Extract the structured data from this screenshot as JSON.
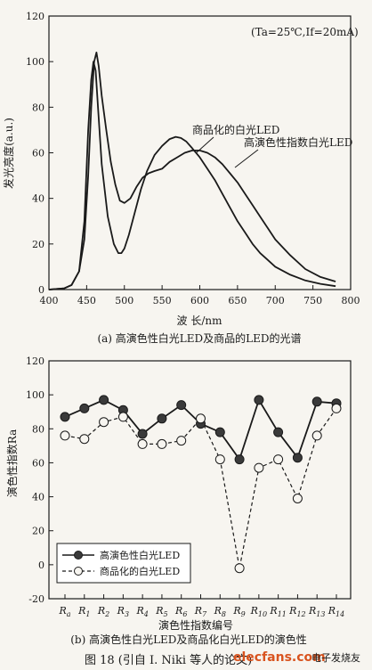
{
  "chart_data": [
    {
      "type": "line",
      "ylabel": "发光亮度(a.u.)",
      "xlabel": "波 长/nm",
      "caption": "(a) 高演色性白光LED及商品的LED的光谱",
      "conditions": "(Ta=25℃,If=20mA)",
      "xlim": [
        400,
        800
      ],
      "ylim": [
        0,
        120
      ],
      "x_ticks": [
        "400",
        "450",
        "500",
        "550",
        "600",
        "650",
        "700",
        "750",
        "800"
      ],
      "y_ticks": [
        "0",
        "20",
        "40",
        "60",
        "80",
        "100",
        "120"
      ],
      "series": [
        {
          "name": "商品化的白光LED",
          "x": [
            400,
            420,
            430,
            440,
            447,
            452,
            456,
            459,
            462,
            465,
            470,
            478,
            486,
            492,
            496,
            500,
            506,
            514,
            522,
            530,
            540,
            550,
            560,
            568,
            575,
            582,
            590,
            600,
            610,
            620,
            630,
            640,
            650,
            660,
            670,
            680,
            690,
            700,
            720,
            740,
            760,
            780
          ],
          "y": [
            0,
            0.5,
            2,
            8,
            30,
            70,
            92,
            100,
            96,
            80,
            55,
            32,
            20,
            16,
            16,
            18,
            24,
            34,
            44,
            52,
            59,
            63,
            66,
            67,
            66.5,
            65,
            62,
            58,
            53,
            48,
            42,
            36,
            30,
            25,
            20,
            16,
            13,
            10,
            6.5,
            4,
            2.5,
            1.5
          ]
        },
        {
          "name": "高演色性指数白光LED",
          "x": [
            400,
            420,
            430,
            440,
            447,
            452,
            456,
            460,
            463,
            466,
            470,
            476,
            482,
            488,
            494,
            500,
            508,
            516,
            524,
            532,
            540,
            550,
            560,
            570,
            580,
            590,
            600,
            610,
            620,
            630,
            640,
            650,
            660,
            670,
            680,
            690,
            700,
            720,
            740,
            760,
            780
          ],
          "y": [
            0,
            0.5,
            2,
            8,
            22,
            50,
            80,
            100,
            104,
            98,
            85,
            70,
            56,
            46,
            39,
            38,
            40,
            45,
            49,
            51,
            52,
            53,
            56,
            58,
            60,
            61,
            61,
            60,
            58,
            55,
            51,
            47,
            42,
            37,
            32,
            27,
            22,
            15,
            9,
            5.5,
            3.5
          ]
        }
      ],
      "annotations": [
        "商品化的白光LED",
        "高演色性指数白光LED"
      ]
    },
    {
      "type": "line",
      "ylabel": "演色性指数Ra",
      "xlabel": "演色性指数编号",
      "caption": "(b) 高演色性白光LED及商品化白光LED的演色性",
      "ylim": [
        -20,
        120
      ],
      "y_ticks": [
        "-20",
        "0",
        "20",
        "40",
        "60",
        "80",
        "100",
        "120"
      ],
      "categories": [
        "Ra",
        "R1",
        "R2",
        "R3",
        "R4",
        "R5",
        "R6",
        "R7",
        "R8",
        "R9",
        "R10",
        "R11",
        "R12",
        "R13",
        "R14"
      ],
      "series": [
        {
          "name": "高演色性白光LED",
          "values": [
            87,
            92,
            97,
            91,
            77,
            86,
            94,
            83,
            78,
            62,
            97,
            78,
            63,
            96,
            95
          ]
        },
        {
          "name": "商品化的白光LED",
          "values": [
            76,
            74,
            84,
            87,
            71,
            71,
            73,
            86,
            62,
            -2,
            57,
            62,
            39,
            76,
            92
          ]
        }
      ],
      "legend": "bottom-left"
    }
  ],
  "figure_caption": "图 18 (引自 I. Niki 等人的论文)",
  "watermark": {
    "text": "elecfans.com",
    "cn": "电子发烧友",
    "color_accent": "#d9541f",
    "color_text": "#1f4ea6"
  }
}
